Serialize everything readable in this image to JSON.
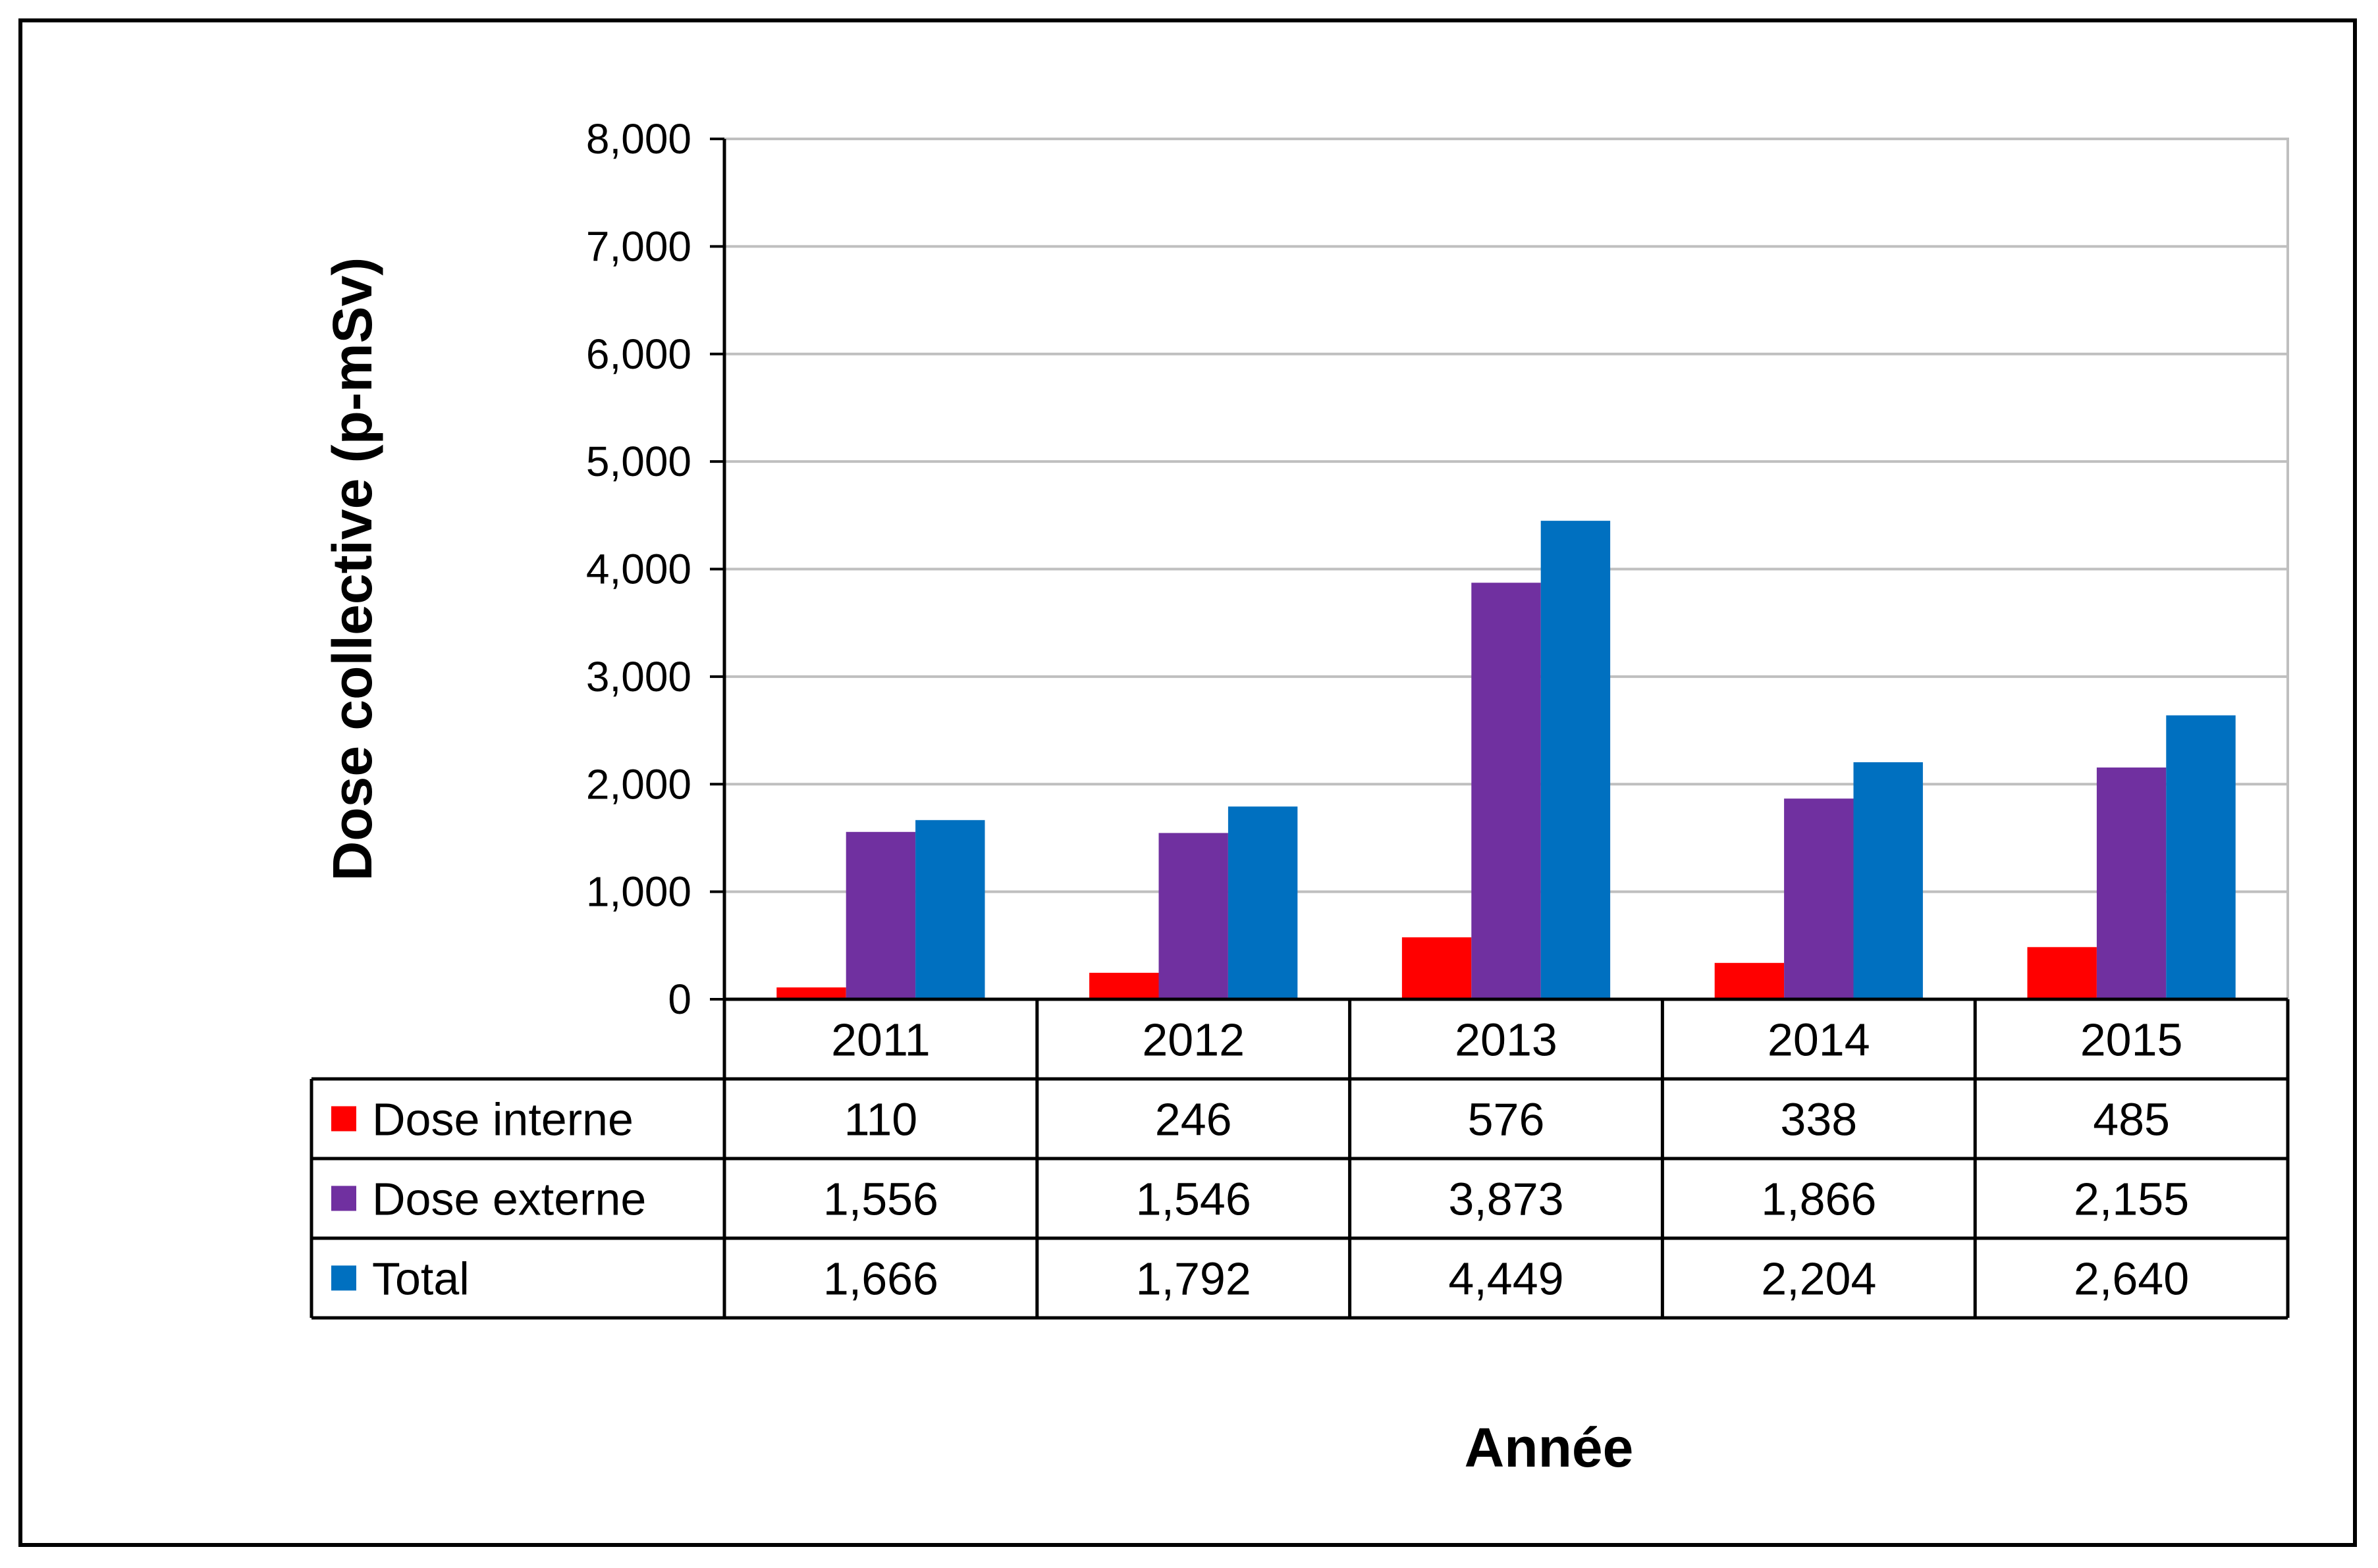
{
  "chart_data": {
    "type": "bar",
    "title": "",
    "xlabel": "Année",
    "ylabel": "Dose collective (p-mSv)",
    "ylim": [
      0,
      8000
    ],
    "yticks": [
      0,
      1000,
      2000,
      3000,
      4000,
      5000,
      6000,
      7000,
      8000
    ],
    "ytick_labels": [
      "0",
      "1,000",
      "2,000",
      "3,000",
      "4,000",
      "5,000",
      "6,000",
      "7,000",
      "8,000"
    ],
    "grid": true,
    "legend": "data-table",
    "categories": [
      "2011",
      "2012",
      "2013",
      "2014",
      "2015"
    ],
    "series": [
      {
        "name": "Dose interne",
        "color": "#ff0000",
        "values": [
          110,
          246,
          576,
          338,
          485
        ],
        "labels": [
          "110",
          "246",
          "576",
          "338",
          "485"
        ]
      },
      {
        "name": "Dose externe",
        "color": "#7030a0",
        "values": [
          1556,
          1546,
          3873,
          1866,
          2155
        ],
        "labels": [
          "1,556",
          "1,546",
          "3,873",
          "1,866",
          "2,155"
        ]
      },
      {
        "name": "Total",
        "color": "#0070c0",
        "values": [
          1666,
          1792,
          4449,
          2204,
          2640
        ],
        "labels": [
          "1,666",
          "1,792",
          "4,449",
          "2,204",
          "2,640"
        ]
      }
    ]
  }
}
